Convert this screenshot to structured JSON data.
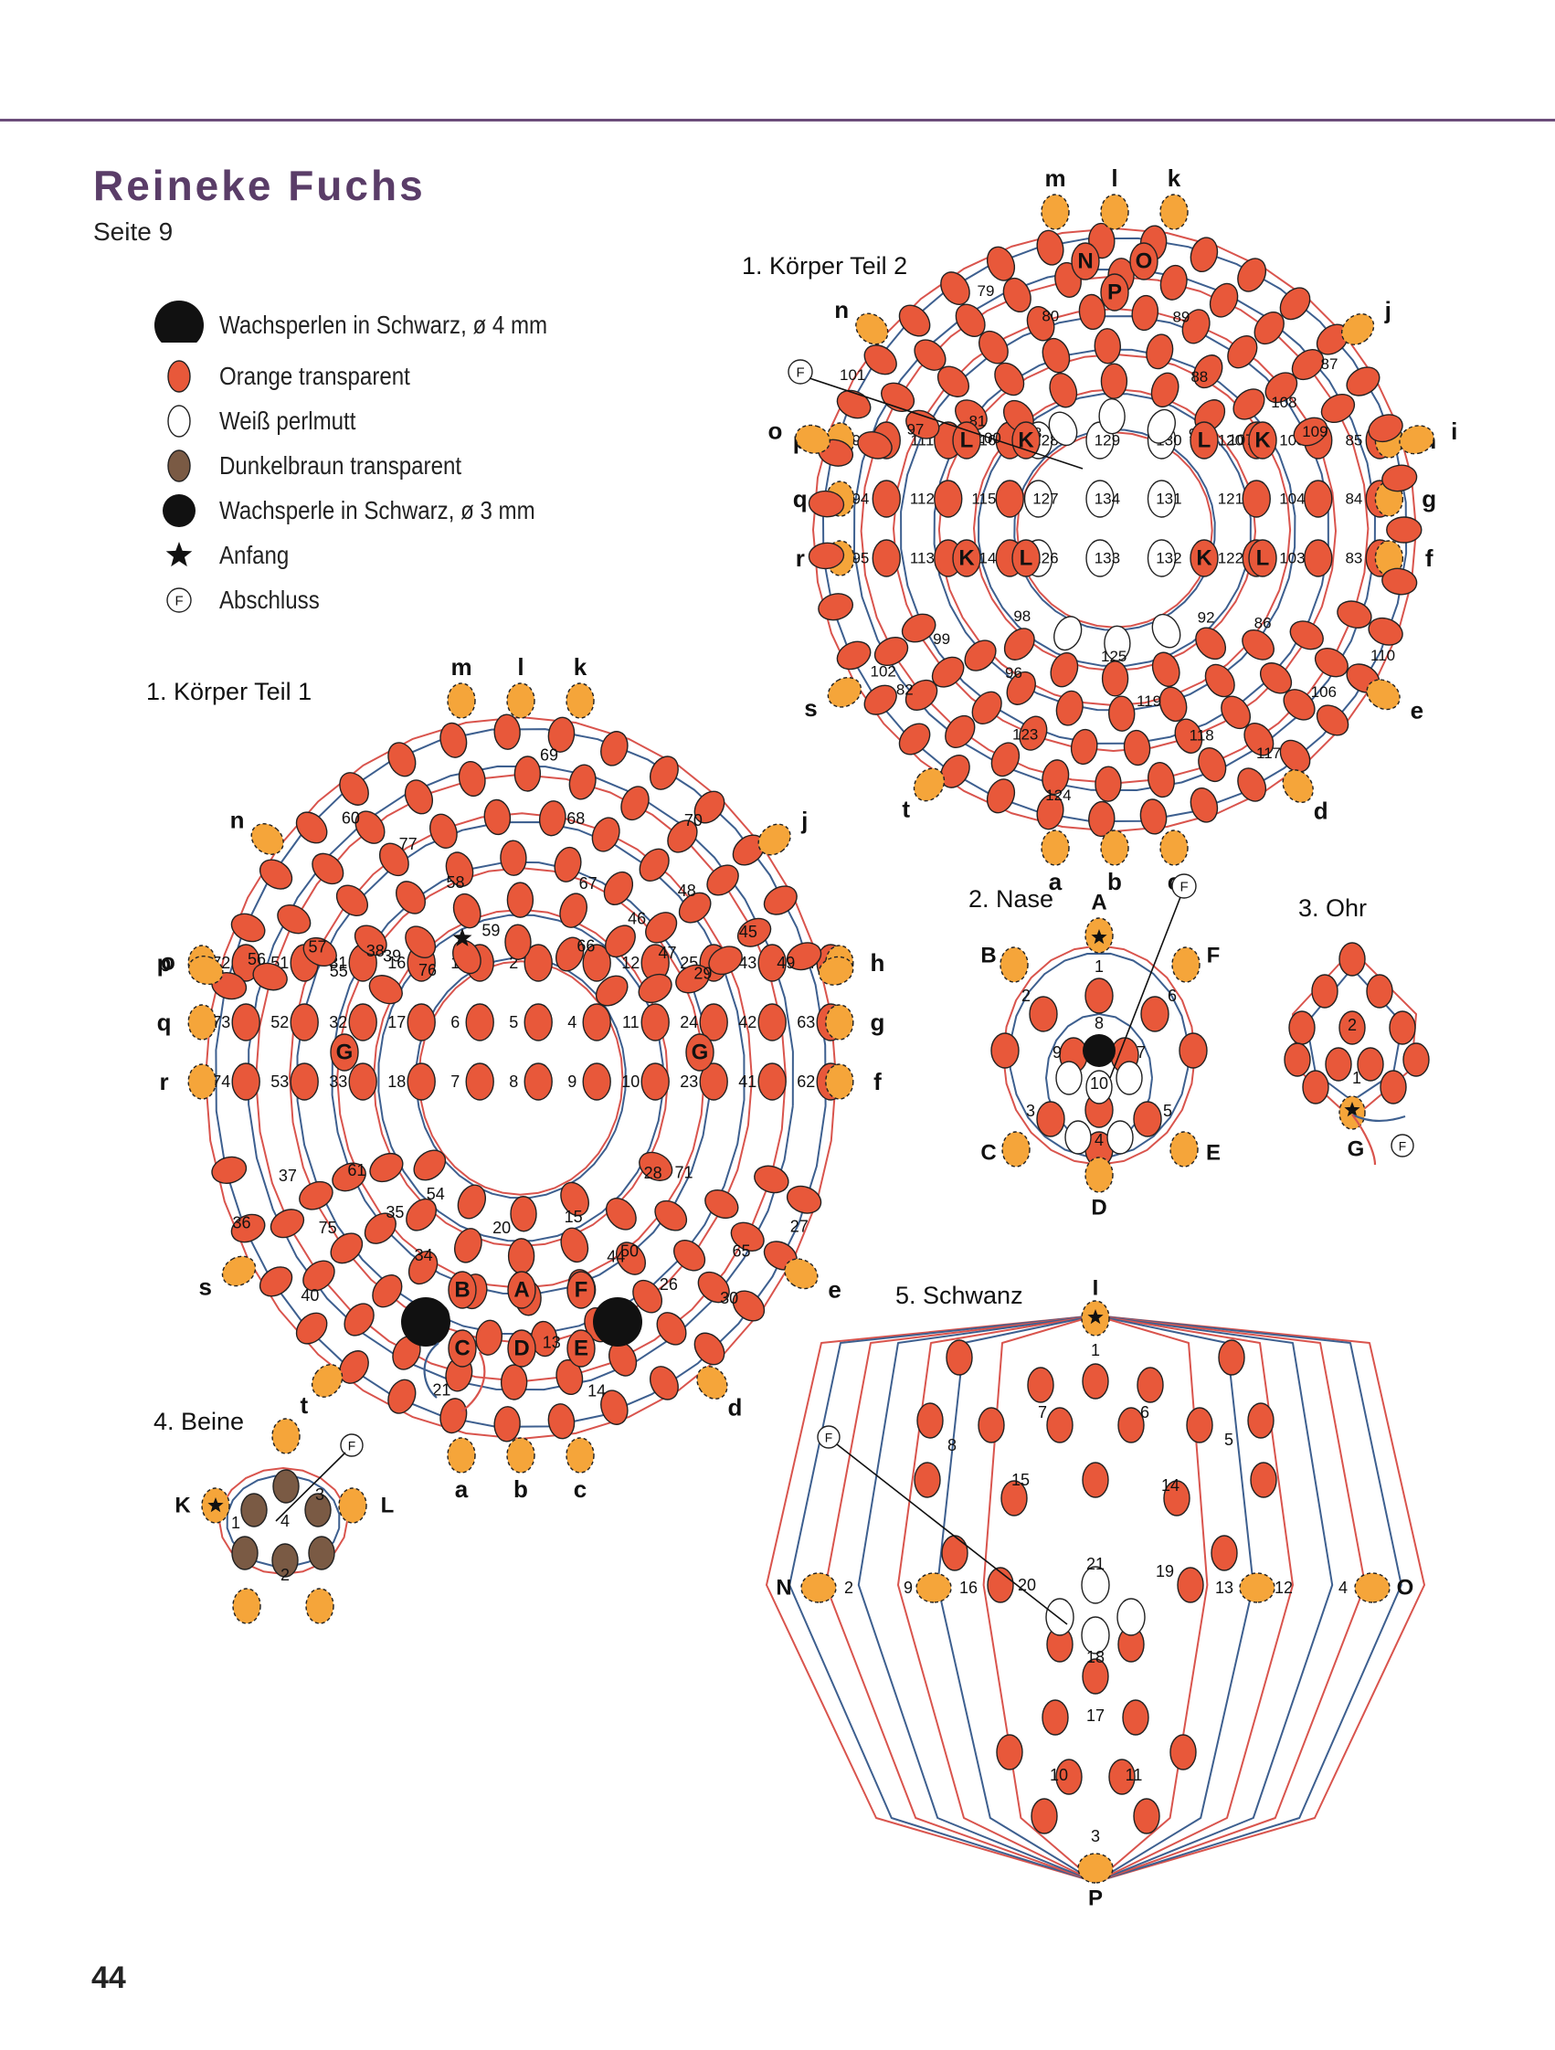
{
  "page": {
    "title": "Reineke Fuchs",
    "subtitle": "Seite 9",
    "page_number": "44"
  },
  "colors": {
    "accent": "#6b4d7a",
    "orange": "#e8583a",
    "orange_light": "#f5a53a",
    "brown": "#7a5a44",
    "black": "#111111",
    "thread_red": "#d9544d",
    "thread_blue": "#3d5f8f"
  },
  "legend": [
    {
      "symbol": "black-bead-large",
      "label": "Wachsperlen in Schwarz, ø 4 mm"
    },
    {
      "symbol": "orange-bead",
      "label": "Orange transparent"
    },
    {
      "symbol": "white-bead",
      "label": "Weiß perlmutt"
    },
    {
      "symbol": "brown-bead",
      "label": "Dunkelbraun transparent"
    },
    {
      "symbol": "black-bead-small",
      "label": "Wachsperle in Schwarz, ø 3 mm"
    },
    {
      "symbol": "star-icon",
      "label": "Anfang"
    },
    {
      "symbol": "finish-circle-icon",
      "label": "Abschluss"
    }
  ],
  "sections": {
    "koerper1": {
      "title": "1. Körper Teil 1",
      "rows": [
        {
          "l": "p",
          "r": "h",
          "n": [
            "72",
            "51",
            "31",
            "16",
            "1",
            "2",
            "3",
            "12",
            "25",
            "43",
            "64"
          ]
        },
        {
          "l": "q",
          "r": "g",
          "n": [
            "73",
            "52",
            "32",
            "17",
            "6",
            "5",
            "4",
            "11",
            "24",
            "42",
            "63"
          ]
        },
        {
          "l": "r",
          "r": "f",
          "n": [
            "74",
            "53",
            "33",
            "18",
            "7",
            "8",
            "9",
            "10",
            "23",
            "41",
            "62"
          ]
        }
      ],
      "top_letters": [
        "m",
        "l",
        "k"
      ],
      "bottom_letters": [
        "a",
        "b",
        "c"
      ],
      "side_letters": [
        "n",
        "j",
        "o",
        "i",
        "s",
        "e",
        "t",
        "d"
      ],
      "bead_letters": [
        "G",
        "G",
        "B",
        "A",
        "F",
        "C",
        "D",
        "E"
      ],
      "numbers": [
        "69",
        "68",
        "67",
        "66",
        "70",
        "48",
        "47",
        "46",
        "49",
        "45",
        "29",
        "28",
        "27",
        "65",
        "71",
        "50",
        "30",
        "26",
        "44",
        "15",
        "14",
        "13",
        "19",
        "20",
        "21",
        "22",
        "34",
        "54",
        "40",
        "75",
        "61",
        "35",
        "36",
        "37",
        "55",
        "39",
        "56",
        "57",
        "38",
        "76",
        "60",
        "77",
        "58",
        "59"
      ]
    },
    "koerper2": {
      "title": "1. Körper Teil 2",
      "rows": [
        {
          "l": "p",
          "r": "h",
          "n": [
            "93",
            "111",
            "116",
            "128",
            "129",
            "130",
            "120",
            "105",
            "85"
          ]
        },
        {
          "l": "q",
          "r": "g",
          "n": [
            "94",
            "112",
            "115",
            "127",
            "134",
            "131",
            "121",
            "104",
            "84"
          ]
        },
        {
          "l": "r",
          "r": "f",
          "n": [
            "95",
            "113",
            "114",
            "126",
            "133",
            "132",
            "122",
            "103",
            "83"
          ]
        }
      ],
      "top_letters": [
        "m",
        "l",
        "k"
      ],
      "bottom_letters": [
        "a",
        "b",
        "c"
      ],
      "side_letters": [
        "n",
        "j",
        "o",
        "i",
        "s",
        "e",
        "t",
        "d"
      ],
      "bead_letters": [
        "N",
        "O",
        "P",
        "L",
        "K",
        "L",
        "K",
        "K",
        "L",
        "K",
        "L"
      ],
      "numbers": [
        "90",
        "89",
        "88",
        "91",
        "87",
        "109",
        "108",
        "107",
        "110",
        "106",
        "86",
        "92",
        "117",
        "118",
        "119",
        "125",
        "124",
        "123",
        "96",
        "98",
        "102",
        "82",
        "99",
        "100",
        "101",
        "97",
        "81",
        "78",
        "79",
        "80"
      ]
    },
    "nase": {
      "title": "2. Nase",
      "letters": [
        "A",
        "B",
        "F",
        "C",
        "E",
        "D"
      ],
      "numbers": [
        "1",
        "2",
        "6",
        "8",
        "9",
        "7",
        "10",
        "3",
        "5",
        "4"
      ]
    },
    "ohr": {
      "title": "3. Ohr",
      "letters": [
        "G"
      ],
      "numbers": [
        "2",
        "1"
      ]
    },
    "beine": {
      "title": "4. Beine",
      "letters": [
        "K",
        "L"
      ],
      "numbers": [
        "1",
        "3",
        "4",
        "2"
      ]
    },
    "schwanz": {
      "title": "5. Schwanz",
      "letters": [
        "I",
        "N",
        "O",
        "P"
      ],
      "numbers": [
        "1",
        "7",
        "6",
        "8",
        "5",
        "15",
        "14",
        "21",
        "2",
        "9",
        "16",
        "20",
        "19",
        "13",
        "12",
        "4",
        "18",
        "17",
        "10",
        "11",
        "3"
      ]
    },
    "finish_marker": "F"
  }
}
